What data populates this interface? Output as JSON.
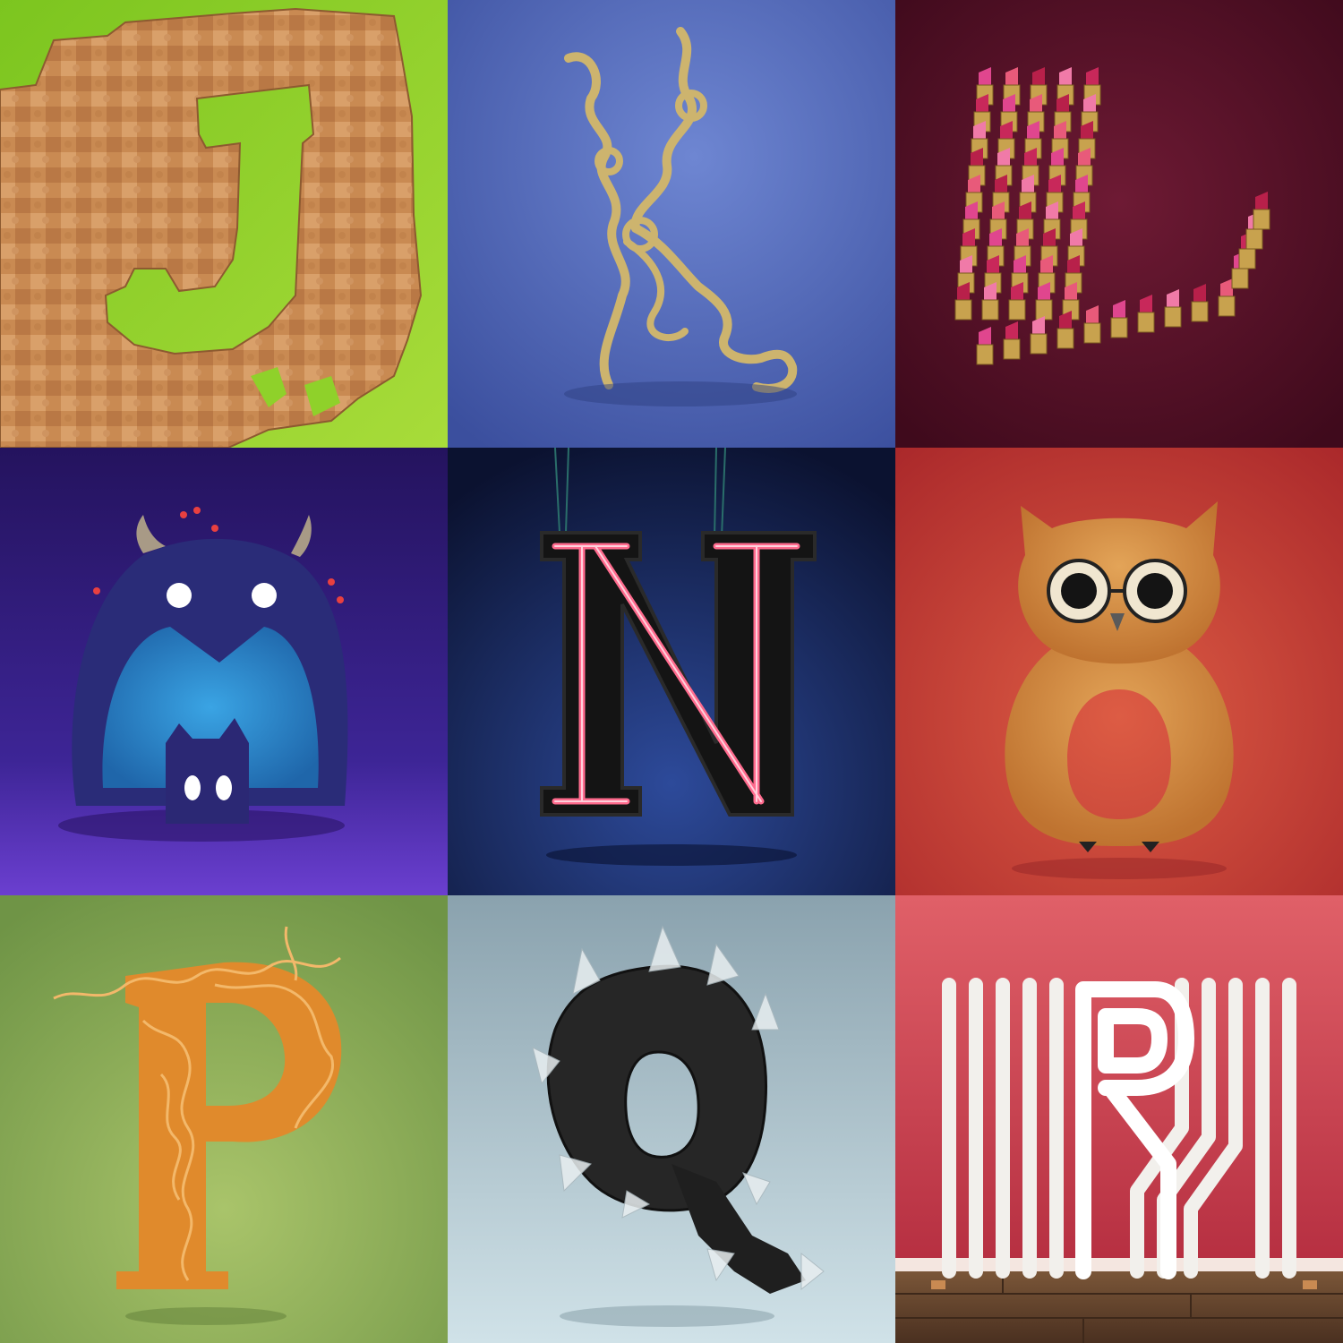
{
  "tiles": [
    {
      "letter": "J",
      "subject": "wooden-jigsaw-puzzle-letter",
      "colors": {
        "background": "#8fd12a",
        "wood": "#c98a52"
      }
    },
    {
      "letter": "K",
      "subject": "knotted-rope-letter",
      "colors": {
        "background": "#4a63b4",
        "rope": "#cdb46e"
      }
    },
    {
      "letter": "L",
      "subject": "lipstick-letter",
      "colors": {
        "background": "#5a1128",
        "lipstick": "#e0468e",
        "case": "#c8a24e"
      }
    },
    {
      "letter": "M",
      "subject": "fuzzy-monster-letter",
      "colors": {
        "background": "#3a1f86",
        "fur": "#2a2c78",
        "belly": "#2f8ad0"
      }
    },
    {
      "letter": "N",
      "subject": "neon-sign-letter",
      "colors": {
        "background": "#121a42",
        "neon": "#ff4f7a",
        "frame": "#1a1a1a"
      }
    },
    {
      "letter": "O",
      "subject": "owl-letter",
      "colors": {
        "background": "#c64434",
        "fur": "#d48a3c"
      }
    },
    {
      "letter": "P",
      "subject": "noodle-letter",
      "colors": {
        "background": "#7fa254",
        "noodle": "#e08a2c"
      }
    },
    {
      "letter": "Q",
      "subject": "crystal-letter",
      "colors": {
        "background": "#8fa8b4",
        "crystal": "#222222"
      }
    },
    {
      "letter": "R",
      "subject": "radiator-letter",
      "colors": {
        "background": "#c23a4c",
        "pipe": "#f2f0ec",
        "floor": "#6b4a32"
      }
    }
  ]
}
